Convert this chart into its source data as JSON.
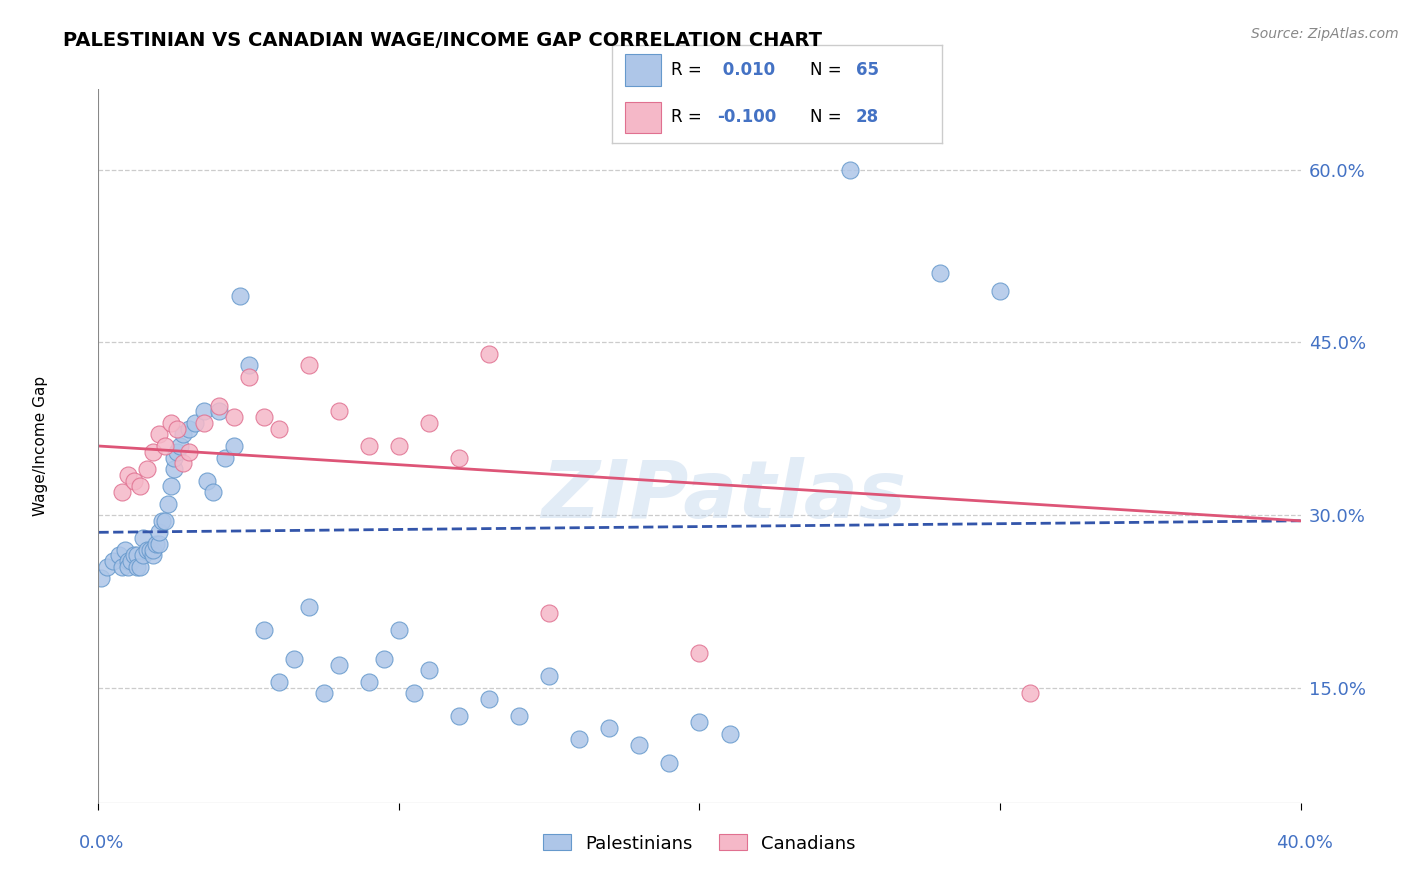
{
  "title": "PALESTINIAN VS CANADIAN WAGE/INCOME GAP CORRELATION CHART",
  "source": "Source: ZipAtlas.com",
  "ylabel": "Wage/Income Gap",
  "yticks": [
    0.15,
    0.3,
    0.45,
    0.6
  ],
  "ytick_labels": [
    "15.0%",
    "30.0%",
    "45.0%",
    "60.0%"
  ],
  "xmin": 0.0,
  "xmax": 0.4,
  "ymin": 0.05,
  "ymax": 0.67,
  "blue_color": "#aec6e8",
  "pink_color": "#f5b8c8",
  "blue_edge_color": "#6699cc",
  "pink_edge_color": "#e07090",
  "blue_trend_color": "#3355aa",
  "pink_trend_color": "#dd5577",
  "blue_R": 0.01,
  "blue_N": 65,
  "pink_R": -0.1,
  "pink_N": 28,
  "grid_color": "#cccccc",
  "title_color": "#000000",
  "axis_label_color": "#4472c4",
  "background_color": "#ffffff",
  "blue_scatter_x": [
    0.001,
    0.003,
    0.005,
    0.007,
    0.008,
    0.009,
    0.01,
    0.01,
    0.011,
    0.012,
    0.013,
    0.013,
    0.014,
    0.015,
    0.015,
    0.016,
    0.017,
    0.018,
    0.018,
    0.019,
    0.02,
    0.02,
    0.021,
    0.022,
    0.023,
    0.024,
    0.025,
    0.025,
    0.026,
    0.027,
    0.028,
    0.03,
    0.032,
    0.035,
    0.036,
    0.038,
    0.04,
    0.042,
    0.045,
    0.047,
    0.05,
    0.055,
    0.06,
    0.065,
    0.07,
    0.075,
    0.08,
    0.09,
    0.095,
    0.1,
    0.105,
    0.11,
    0.12,
    0.13,
    0.14,
    0.15,
    0.16,
    0.17,
    0.18,
    0.19,
    0.2,
    0.21,
    0.25,
    0.28,
    0.3
  ],
  "blue_scatter_y": [
    0.245,
    0.255,
    0.26,
    0.265,
    0.255,
    0.27,
    0.26,
    0.255,
    0.26,
    0.265,
    0.265,
    0.255,
    0.255,
    0.265,
    0.28,
    0.27,
    0.27,
    0.265,
    0.27,
    0.275,
    0.275,
    0.285,
    0.295,
    0.295,
    0.31,
    0.325,
    0.34,
    0.35,
    0.355,
    0.36,
    0.37,
    0.375,
    0.38,
    0.39,
    0.33,
    0.32,
    0.39,
    0.35,
    0.36,
    0.49,
    0.43,
    0.2,
    0.155,
    0.175,
    0.22,
    0.145,
    0.17,
    0.155,
    0.175,
    0.2,
    0.145,
    0.165,
    0.125,
    0.14,
    0.125,
    0.16,
    0.105,
    0.115,
    0.1,
    0.085,
    0.12,
    0.11,
    0.6,
    0.51,
    0.495
  ],
  "pink_scatter_x": [
    0.008,
    0.01,
    0.012,
    0.014,
    0.016,
    0.018,
    0.02,
    0.022,
    0.024,
    0.026,
    0.028,
    0.03,
    0.035,
    0.04,
    0.045,
    0.05,
    0.055,
    0.06,
    0.07,
    0.08,
    0.09,
    0.1,
    0.11,
    0.12,
    0.13,
    0.15,
    0.2,
    0.31
  ],
  "pink_scatter_y": [
    0.32,
    0.335,
    0.33,
    0.325,
    0.34,
    0.355,
    0.37,
    0.36,
    0.38,
    0.375,
    0.345,
    0.355,
    0.38,
    0.395,
    0.385,
    0.42,
    0.385,
    0.375,
    0.43,
    0.39,
    0.36,
    0.36,
    0.38,
    0.35,
    0.44,
    0.215,
    0.18,
    0.145
  ]
}
